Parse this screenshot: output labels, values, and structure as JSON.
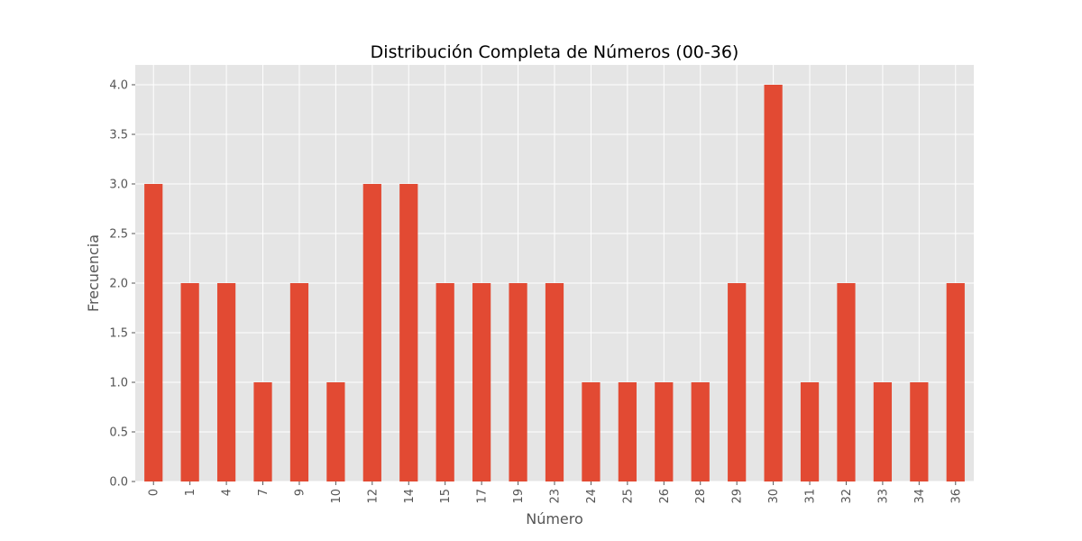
{
  "colors": {
    "bar": "#E24A33",
    "plot_background": "#E5E5E5",
    "grid": "#FFFFFF",
    "tick_text": "#555555",
    "title_text": "#000000"
  },
  "chart_data": {
    "type": "bar",
    "title": "Distribución Completa de Números (00-36)",
    "xlabel": "Número",
    "ylabel": "Frecuencia",
    "categories": [
      "0",
      "1",
      "4",
      "7",
      "9",
      "10",
      "12",
      "14",
      "15",
      "17",
      "19",
      "23",
      "24",
      "25",
      "26",
      "28",
      "29",
      "30",
      "31",
      "32",
      "33",
      "34",
      "36"
    ],
    "values": [
      3,
      2,
      2,
      1,
      2,
      1,
      3,
      3,
      2,
      2,
      2,
      2,
      1,
      1,
      1,
      1,
      2,
      4,
      1,
      2,
      1,
      1,
      2
    ],
    "yticks": [
      "0.0",
      "0.5",
      "1.0",
      "1.5",
      "2.0",
      "2.5",
      "3.0",
      "3.5",
      "4.0"
    ],
    "ylim": [
      0,
      4.2
    ],
    "grid": true,
    "legend": false
  }
}
